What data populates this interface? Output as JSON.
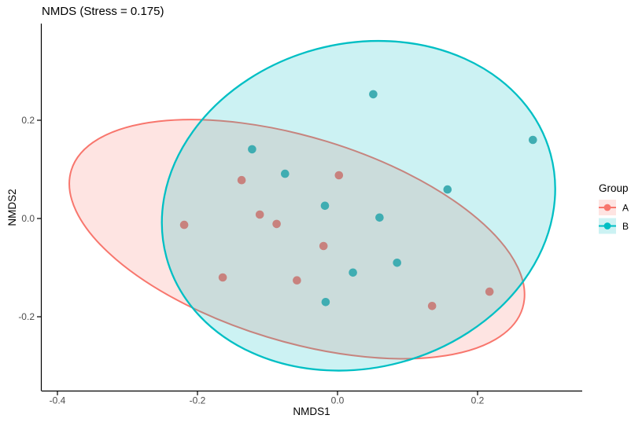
{
  "title": "NMDS (Stress = 0.175)",
  "axes": {
    "x": {
      "label": "NMDS1",
      "tick_values": [
        -0.4,
        -0.2,
        0.0,
        0.2
      ],
      "tick_labels": [
        "-0.4",
        "-0.2",
        "0.0",
        "0.2"
      ]
    },
    "y": {
      "label": "NMDS2",
      "tick_values": [
        0.2,
        0.0,
        -0.2
      ],
      "tick_labels": [
        "0.2",
        "0.0",
        "-0.2"
      ]
    }
  },
  "legend": {
    "title": "Group",
    "items": [
      {
        "label": "A",
        "color": "#F8766D",
        "fill_alpha": 0.2
      },
      {
        "label": "B",
        "color": "#00BFC4",
        "fill_alpha": 0.2
      }
    ]
  },
  "colors": {
    "group_a": "#F8766D",
    "group_b": "#00BFC4",
    "point_a_fill": "#C8827E",
    "point_b_fill": "#3FADB2",
    "axis_line": "#000000",
    "tick_label": "#4D4D4D",
    "background": "#FFFFFF"
  },
  "chart_data": {
    "type": "scatter",
    "title": "NMDS (Stress = 0.175)",
    "xlabel": "NMDS1",
    "ylabel": "NMDS2",
    "xlim": [
      -0.4225,
      0.3494
    ],
    "ylim": [
      -0.3504,
      0.3968
    ],
    "grid": false,
    "legend_position": "right",
    "ellipse_fill_alpha": 0.2,
    "point_radius_px": 5.3,
    "series": [
      {
        "name": "A",
        "color": "#F8766D",
        "point_fill": "#C8827E",
        "points": [
          [
            -0.137,
            0.078
          ],
          [
            0.002,
            0.088
          ],
          [
            -0.219,
            -0.013
          ],
          [
            -0.111,
            0.008
          ],
          [
            -0.087,
            -0.011
          ],
          [
            -0.02,
            -0.056
          ],
          [
            -0.164,
            -0.12
          ],
          [
            -0.058,
            -0.126
          ],
          [
            0.135,
            -0.178
          ],
          [
            0.217,
            -0.149
          ]
        ],
        "ellipse": {
          "cx": -0.058,
          "cy": -0.042,
          "rx": 0.337,
          "ry": 0.208,
          "rotate_deg": 17,
          "stroke_width": 2.0
        }
      },
      {
        "name": "B",
        "color": "#00BFC4",
        "point_fill": "#3FADB2",
        "points": [
          [
            0.051,
            0.253
          ],
          [
            0.279,
            0.16
          ],
          [
            0.157,
            0.059
          ],
          [
            -0.122,
            0.141
          ],
          [
            -0.075,
            0.091
          ],
          [
            -0.018,
            0.026
          ],
          [
            0.06,
            0.002
          ],
          [
            0.085,
            -0.09
          ],
          [
            0.022,
            -0.11
          ],
          [
            -0.017,
            -0.17
          ]
        ],
        "ellipse": {
          "cx": 0.03,
          "cy": 0.026,
          "rx": 0.284,
          "ry": 0.33,
          "rotate_deg": -15,
          "stroke_width": 2.3
        }
      }
    ]
  }
}
